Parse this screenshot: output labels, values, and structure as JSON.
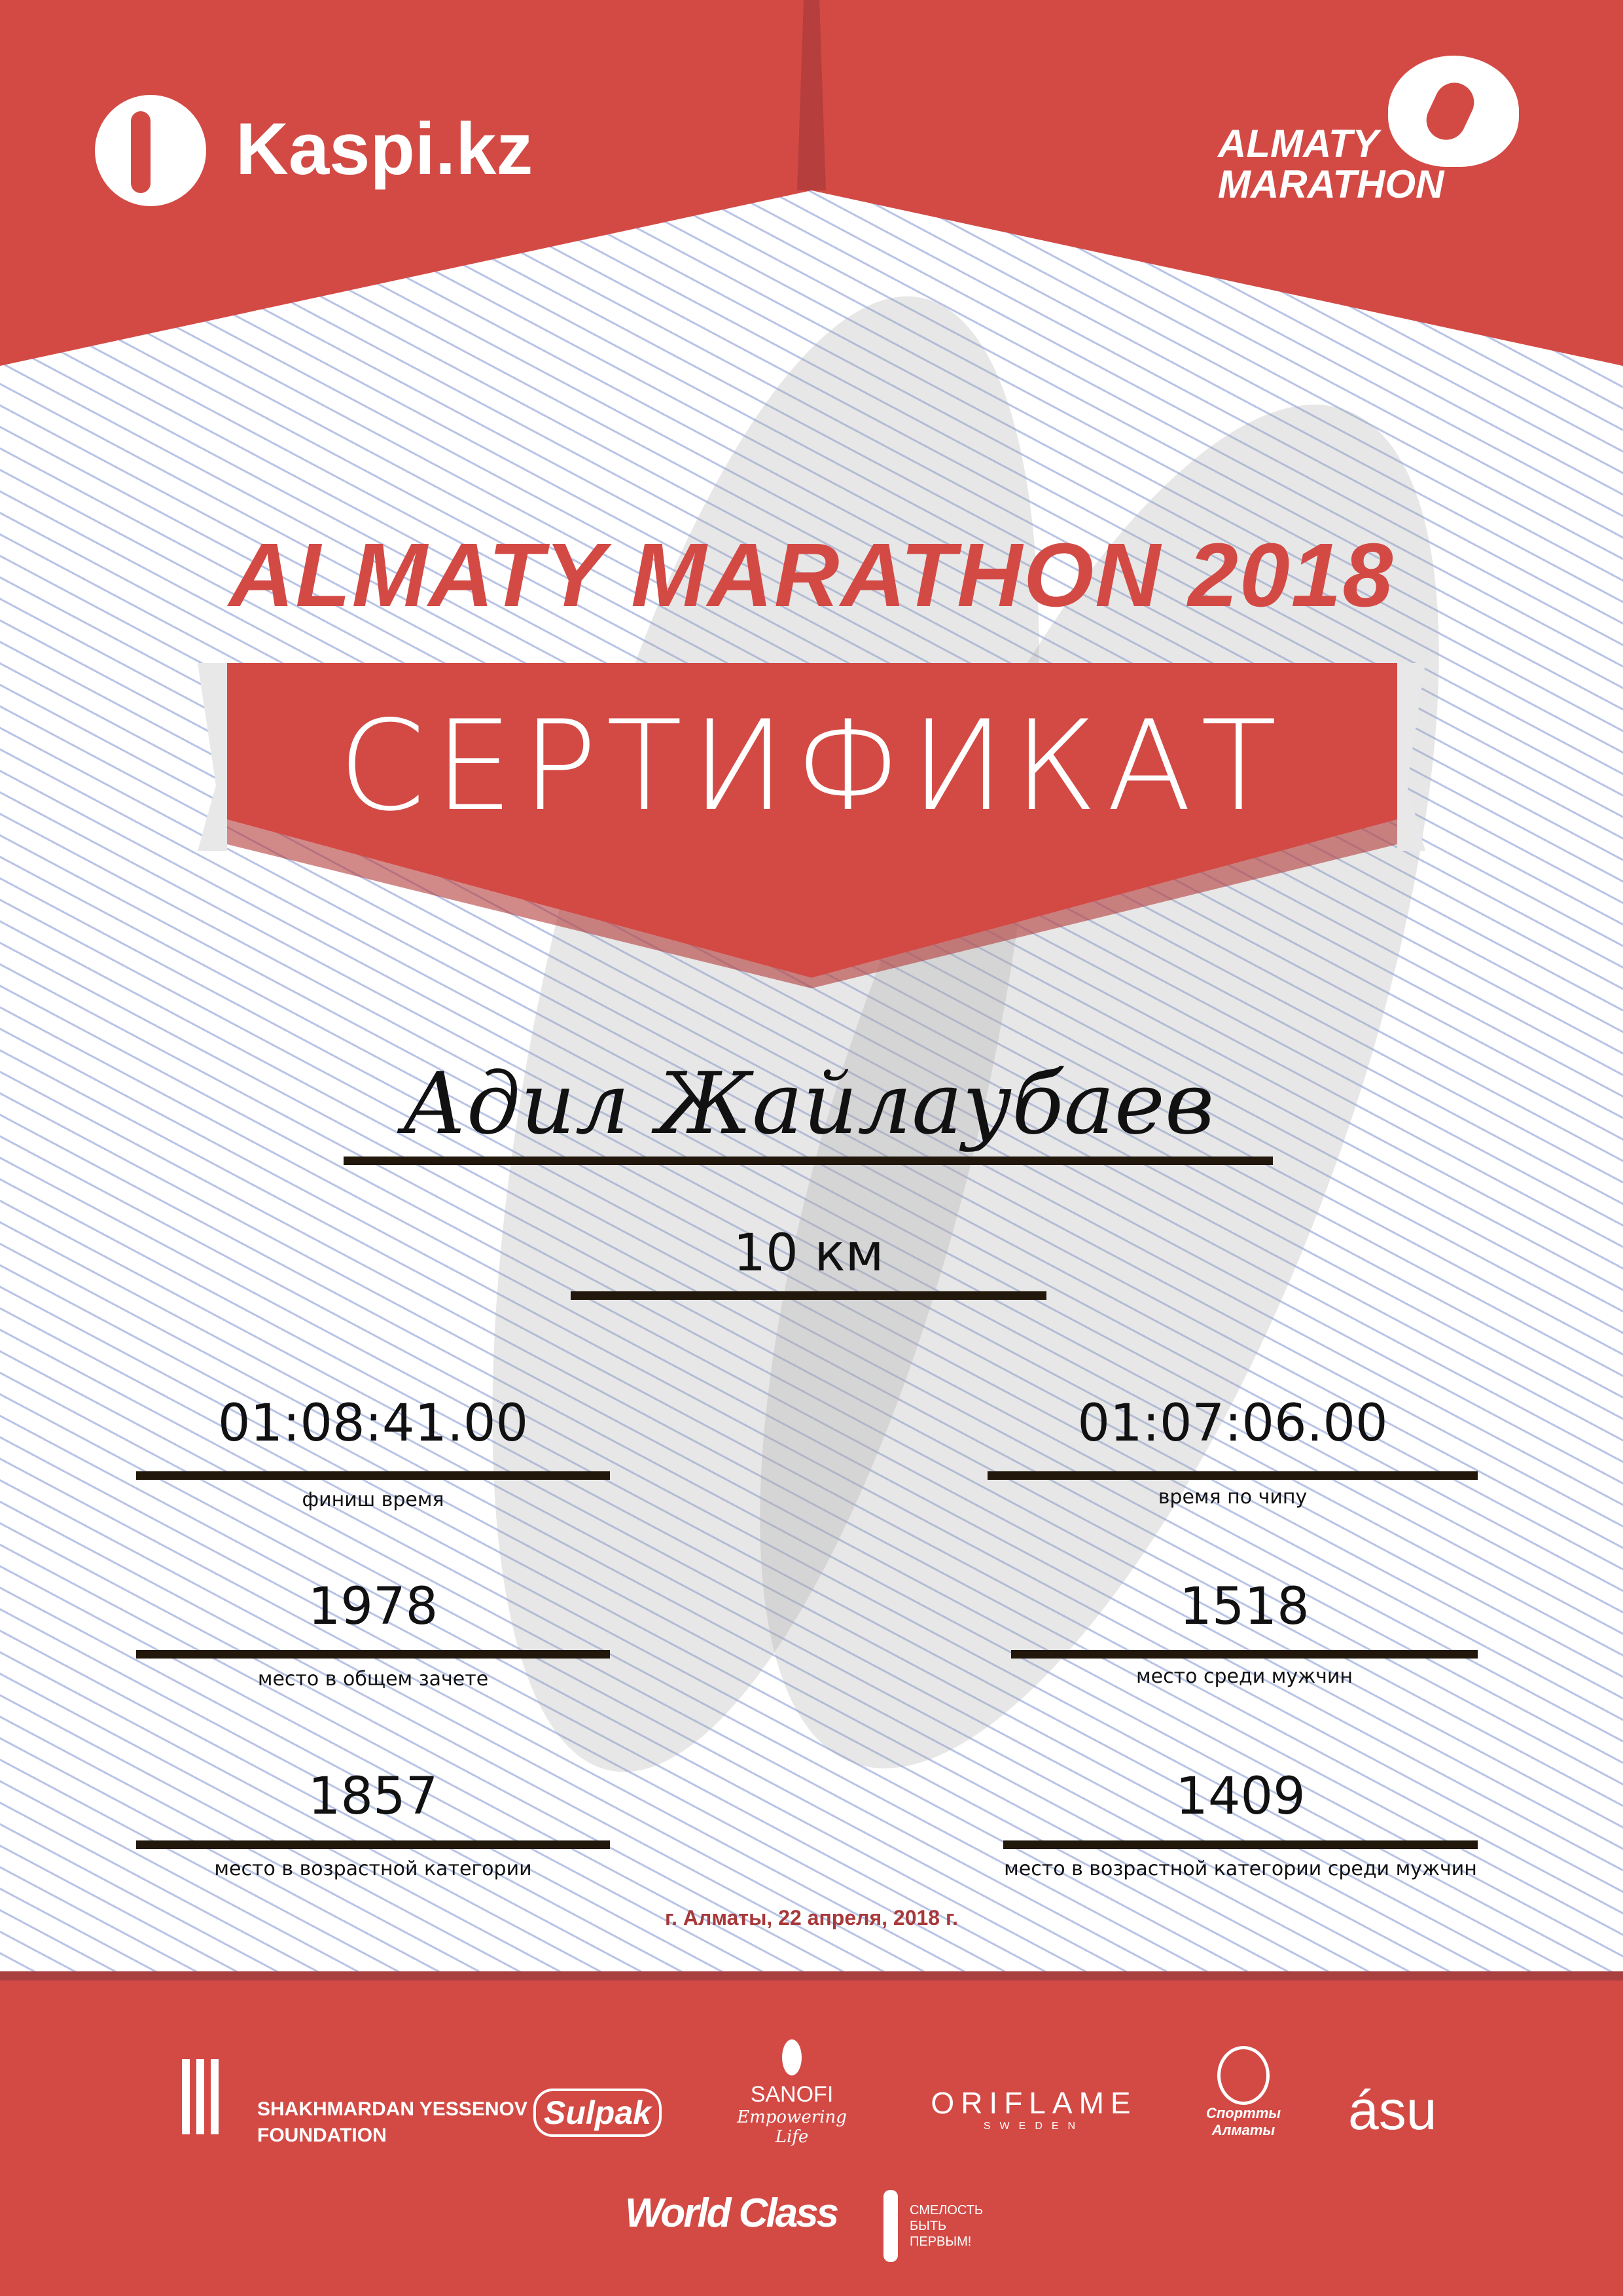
{
  "header": {
    "kaspi_logo": "Kaspi.kz",
    "marathon_logo_line1": "ALMATY",
    "marathon_logo_line2": "MARATHON"
  },
  "title": "ALMATY MARATHON 2018",
  "banner": "СЕРТИФИКАТ",
  "participant": {
    "name": "Адил Жайлаубаев",
    "distance": "10 км"
  },
  "stats": [
    {
      "value": "01:08:41.00",
      "label": "финиш время"
    },
    {
      "value": "01:07:06.00",
      "label": "время по чипу"
    },
    {
      "value": "1978",
      "label": "место в общем зачете"
    },
    {
      "value": "1518",
      "label": "место среди мужчин"
    },
    {
      "value": "1857",
      "label": "место в возрастной категории"
    },
    {
      "value": "1409",
      "label": "место в возрастной категории среди мужчин"
    }
  ],
  "date": "г. Алматы, 22 апреля, 2018 г.",
  "sponsors": {
    "yessenov": [
      "SHAKHMARDAN YESSENOV",
      "FOUNDATION"
    ],
    "sulpak": "Sulpak",
    "sanofi": [
      "SANOFI",
      "Empowering Life"
    ],
    "oriflame": [
      "ORIFLAME",
      "SWEDEN"
    ],
    "sport_almaty": [
      "Спортты",
      "Алматы"
    ],
    "asu": "ásu",
    "worldclass": "World Class",
    "fund": [
      "СМЕЛОСТЬ",
      "БЫТЬ",
      "ПЕРВЫМ!"
    ]
  },
  "colors": {
    "brand_red": "#d34a45",
    "dark_red": "#a8383a",
    "line": "#21170b",
    "pattern": "#b9c4e6"
  }
}
